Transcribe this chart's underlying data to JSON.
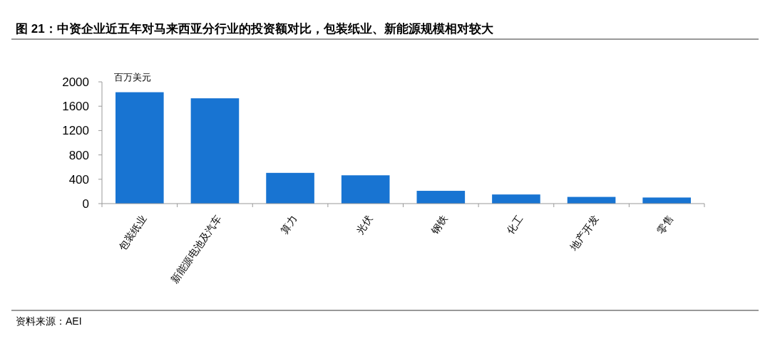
{
  "chart_data": {
    "type": "bar",
    "title": "图 21：中资企业近五年对马来西亚分行业的投资额对比，包装纸业、新能源规模相对较大",
    "ylabel": "百万美元",
    "categories": [
      "包装纸业",
      "新能源电池及汽车",
      "算力",
      "光伏",
      "钢铁",
      "化工",
      "地产开发",
      "零售"
    ],
    "values": [
      1830,
      1730,
      505,
      465,
      210,
      150,
      110,
      100
    ],
    "color": "#1874d2",
    "ylim": [
      0,
      2000
    ],
    "yticks": [
      0,
      400,
      800,
      1200,
      1600,
      2000
    ],
    "grid": false,
    "annotations": [
      "资料来源：AEI"
    ]
  }
}
